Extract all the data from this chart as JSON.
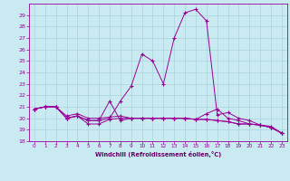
{
  "background_color": "#c8eaf0",
  "grid_color": "#aad4dc",
  "line_color": "#990099",
  "xlabel_color": "#660066",
  "marker": "+",
  "xlabel": "Windchill (Refroidissement éolien,°C)",
  "xlim": [
    -0.5,
    23.5
  ],
  "ylim": [
    18,
    30
  ],
  "yticks": [
    18,
    19,
    20,
    21,
    22,
    23,
    24,
    25,
    26,
    27,
    28,
    29
  ],
  "xticks": [
    0,
    1,
    2,
    3,
    4,
    5,
    6,
    7,
    8,
    9,
    10,
    11,
    12,
    13,
    14,
    15,
    16,
    17,
    18,
    19,
    20,
    21,
    22,
    23
  ],
  "xtick_labels": [
    "0",
    "1",
    "2",
    "3",
    "4",
    "5",
    "6",
    "7",
    "8",
    "9",
    "10",
    "11",
    "12",
    "13",
    "14",
    "15",
    "16",
    "17",
    "18",
    "19",
    "20",
    "21",
    "22",
    "23"
  ],
  "series": [
    [
      20.8,
      21.0,
      21.0,
      20.0,
      20.2,
      19.5,
      19.5,
      19.9,
      20.0,
      20.0,
      20.0,
      20.0,
      20.0,
      20.0,
      20.0,
      19.9,
      19.9,
      19.8,
      19.7,
      19.5,
      19.5,
      19.4,
      19.2,
      18.7
    ],
    [
      20.8,
      21.0,
      21.0,
      20.0,
      20.2,
      19.8,
      19.8,
      20.0,
      21.5,
      22.8,
      25.6,
      25.0,
      23.0,
      27.0,
      29.2,
      29.5,
      28.5,
      20.3,
      20.5,
      20.0,
      19.8,
      19.4,
      19.2,
      18.7
    ],
    [
      20.8,
      21.0,
      21.0,
      20.0,
      20.2,
      19.8,
      19.8,
      21.5,
      19.8,
      20.0,
      20.0,
      20.0,
      20.0,
      20.0,
      20.0,
      19.9,
      19.9,
      19.8,
      19.7,
      19.5,
      19.5,
      19.4,
      19.2,
      18.7
    ],
    [
      20.8,
      21.0,
      21.0,
      20.2,
      20.4,
      20.0,
      20.0,
      20.1,
      20.2,
      20.0,
      20.0,
      20.0,
      20.0,
      20.0,
      20.0,
      19.9,
      20.4,
      20.8,
      20.0,
      19.8,
      19.5,
      19.4,
      19.3,
      18.7
    ]
  ]
}
